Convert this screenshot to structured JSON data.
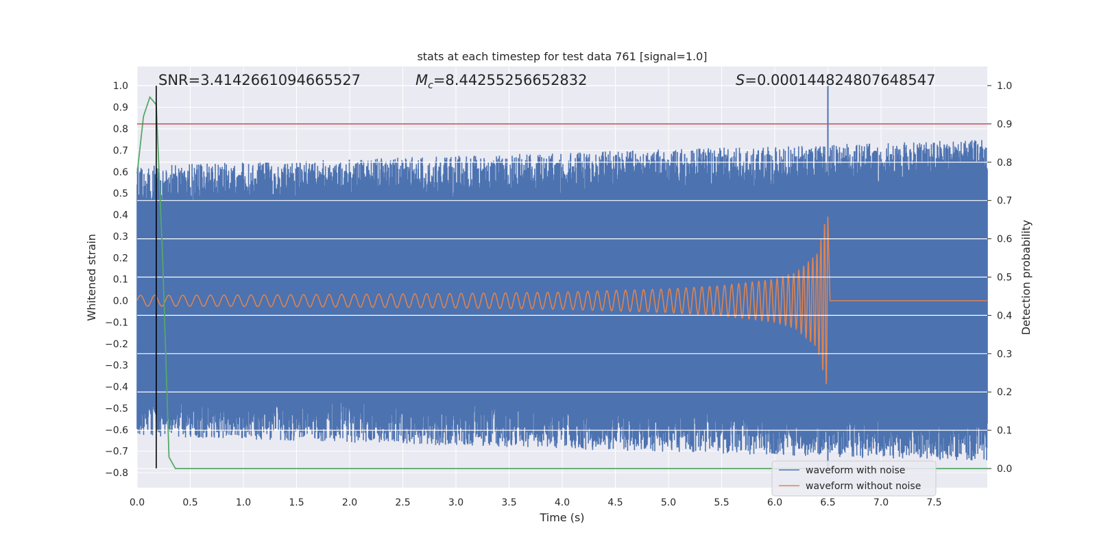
{
  "chart_data": {
    "type": "line",
    "title": "stats at each timestep for test data 761 [signal=1.0]",
    "xlabel": "Time (s)",
    "ylabel_left": "Whitened strain",
    "ylabel_right": "Detection probability",
    "xlim": [
      0.0,
      8.0
    ],
    "ylim_left": [
      -0.87,
      1.09
    ],
    "ylim_right": [
      -0.05,
      1.05
    ],
    "xticks": [
      "0.0",
      "0.5",
      "1.0",
      "1.5",
      "2.0",
      "2.5",
      "3.0",
      "3.5",
      "4.0",
      "4.5",
      "5.0",
      "5.5",
      "6.0",
      "6.5",
      "7.0",
      "7.5"
    ],
    "xtick_values": [
      0.0,
      0.5,
      1.0,
      1.5,
      2.0,
      2.5,
      3.0,
      3.5,
      4.0,
      4.5,
      5.0,
      5.5,
      6.0,
      6.5,
      7.0,
      7.5
    ],
    "yticks_left": [
      "1.0",
      "0.9",
      "0.8",
      "0.7",
      "0.6",
      "0.5",
      "0.4",
      "0.3",
      "0.2",
      "0.1",
      "0.0",
      "−0.1",
      "−0.2",
      "−0.3",
      "−0.4",
      "−0.5",
      "−0.6",
      "−0.7",
      "−0.8"
    ],
    "ytick_values_left": [
      1.0,
      0.9,
      0.8,
      0.7,
      0.6,
      0.5,
      0.4,
      0.3,
      0.2,
      0.1,
      0.0,
      -0.1,
      -0.2,
      -0.3,
      -0.4,
      -0.5,
      -0.6,
      -0.7,
      -0.8
    ],
    "yticks_right": [
      "1.0",
      "0.9",
      "0.8",
      "0.7",
      "0.6",
      "0.5",
      "0.4",
      "0.3",
      "0.2",
      "0.1",
      "0.0"
    ],
    "ytick_values_right": [
      1.0,
      0.9,
      0.8,
      0.7,
      0.6,
      0.5,
      0.4,
      0.3,
      0.2,
      0.1,
      0.0
    ],
    "annotations": {
      "snr": "SNR=3.4142661094665527",
      "mc_symbol": "M",
      "mc_sub": "c",
      "mc_value": "=8.44255256652832",
      "s_symbol": "S",
      "s_value": "=0.000144824807648547"
    },
    "series": [
      {
        "name": "waveform with noise",
        "color": "#4c72b0",
        "axis": "left",
        "typical_envelope": [
          -0.6,
          0.6
        ],
        "spike_x": 6.5,
        "spike_range": [
          -0.78,
          1.0
        ]
      },
      {
        "name": "waveform without noise",
        "color": "#dd8452",
        "axis": "left",
        "description_points": {
          "x": [
            0.0,
            1.0,
            2.0,
            3.0,
            4.0,
            5.0,
            5.5,
            6.0,
            6.2,
            6.4,
            6.5,
            6.52,
            8.0
          ],
          "amplitude": [
            0.025,
            0.027,
            0.03,
            0.034,
            0.04,
            0.055,
            0.07,
            0.1,
            0.13,
            0.22,
            0.42,
            0.0,
            0.0
          ]
        }
      },
      {
        "name": "detection probability",
        "color": "#55a868",
        "axis": "right",
        "x": [
          0.0,
          0.06,
          0.12,
          0.18,
          0.24,
          0.3,
          0.36,
          0.42,
          8.0
        ],
        "y": [
          0.77,
          0.92,
          0.97,
          0.95,
          0.55,
          0.03,
          0.0,
          0.0,
          0.0
        ]
      }
    ],
    "reference_lines": {
      "threshold_right": 0.9,
      "threshold_color": "#c44e52",
      "vline_x": 0.18,
      "vline_color": "#000000",
      "vline_range_left": [
        -0.78,
        1.0
      ]
    },
    "legend": {
      "placement": "lower-right",
      "entries": [
        "waveform with noise",
        "waveform without noise"
      ]
    },
    "grid": true,
    "style": {
      "background": "#eaeaf2",
      "grid_color": "#ffffff"
    }
  }
}
